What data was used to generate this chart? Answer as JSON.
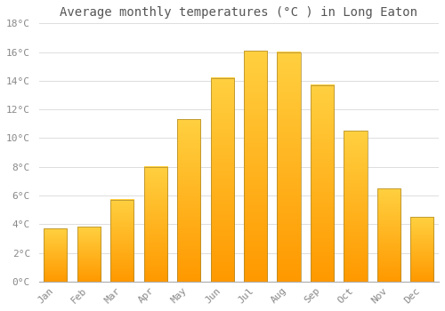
{
  "title": "Average monthly temperatures (°C ) in Long Eaton",
  "months": [
    "Jan",
    "Feb",
    "Mar",
    "Apr",
    "May",
    "Jun",
    "Jul",
    "Aug",
    "Sep",
    "Oct",
    "Nov",
    "Dec"
  ],
  "temperatures": [
    3.7,
    3.8,
    5.7,
    8.0,
    11.3,
    14.2,
    16.1,
    16.0,
    13.7,
    10.5,
    6.5,
    4.5
  ],
  "bar_color_main": "#FFAA00",
  "bar_color_light": "#FFD060",
  "bar_edge_color": "#888844",
  "ylim": [
    0,
    18
  ],
  "yticks": [
    0,
    2,
    4,
    6,
    8,
    10,
    12,
    14,
    16,
    18
  ],
  "ytick_labels": [
    "0°C",
    "2°C",
    "4°C",
    "6°C",
    "8°C",
    "10°C",
    "12°C",
    "14°C",
    "16°C",
    "18°C"
  ],
  "background_color": "#FFFFFF",
  "grid_color": "#DDDDDD",
  "title_fontsize": 10,
  "tick_fontsize": 8,
  "font_family": "monospace",
  "bar_width": 0.7
}
